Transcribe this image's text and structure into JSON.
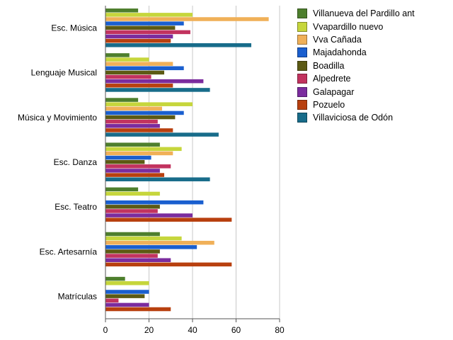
{
  "chart_data": {
    "type": "bar",
    "orientation": "horizontal",
    "categories": [
      "Esc. Música",
      "Lenguaje Musical",
      "Música y Movimiento",
      "Esc. Danza",
      "Esc. Teatro",
      "Esc. Artesarnía",
      "Matrículas"
    ],
    "series": [
      {
        "name": "Villanueva del Pardillo ant",
        "color": "#4e7f2d",
        "values": [
          15,
          11,
          15,
          25,
          15,
          25,
          9
        ]
      },
      {
        "name": "Vvapardillo nuevo",
        "color": "#c6d63c",
        "values": [
          40,
          20,
          40,
          35,
          25,
          35,
          20
        ]
      },
      {
        "name": "Vva Cañada",
        "color": "#f0b058",
        "values": [
          75,
          31,
          26,
          31,
          0,
          50,
          0
        ]
      },
      {
        "name": "Majadahonda",
        "color": "#1a5fcf",
        "values": [
          36,
          36,
          36,
          21,
          45,
          42,
          20
        ]
      },
      {
        "name": "Boadilla",
        "color": "#5c5a14",
        "values": [
          32,
          27,
          32,
          18,
          25,
          25,
          18
        ]
      },
      {
        "name": "Alpedrete",
        "color": "#c2335f",
        "values": [
          39,
          21,
          24,
          30,
          24,
          24,
          6
        ]
      },
      {
        "name": "Galapagar",
        "color": "#7b2c9e",
        "values": [
          31,
          45,
          25,
          25,
          40,
          30,
          20
        ]
      },
      {
        "name": "Pozuelo",
        "color": "#b8400f",
        "values": [
          30,
          31,
          31,
          27,
          58,
          58,
          30
        ]
      },
      {
        "name": "Villaviciosa de Odón",
        "color": "#186c8a",
        "values": [
          67,
          48,
          52,
          48,
          0,
          0,
          0
        ]
      }
    ],
    "x_ticks": [
      0,
      20,
      40,
      60,
      80
    ],
    "xlim": [
      0,
      80
    ],
    "grid": true,
    "legend_position": "right",
    "title": "",
    "xlabel": "",
    "ylabel": ""
  }
}
